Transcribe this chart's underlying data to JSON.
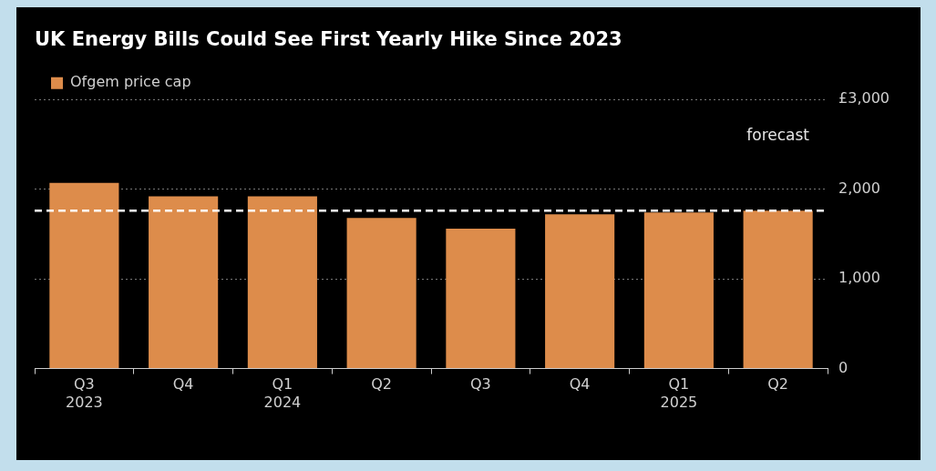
{
  "chart_data": {
    "type": "bar",
    "title": "UK Energy Bills Could See First Yearly Hike Since 2023",
    "categories": [
      "Q3 2023",
      "Q4",
      "Q1 2024",
      "Q2",
      "Q3",
      "Q4",
      "Q1 2025",
      "Q2"
    ],
    "series": [
      {
        "name": "Ofgem price cap",
        "color": "#dd8c4b",
        "values": [
          2070,
          1920,
          1920,
          1680,
          1560,
          1720,
          1740,
          1760
        ]
      }
    ],
    "ylim": [
      0,
      3000
    ],
    "yticks": [
      0,
      {
        "value": 1000,
        "label": "1,000"
      },
      {
        "value": 2000,
        "label": "2,000"
      },
      {
        "value": 3000,
        "label": "£3,000"
      }
    ],
    "ref_lines": [
      {
        "axis": "y",
        "value": 1760,
        "color": "#ffffff",
        "line_style": "dashed"
      }
    ],
    "annotations": [
      "forecast"
    ],
    "grid": "y",
    "legend": "top left"
  }
}
